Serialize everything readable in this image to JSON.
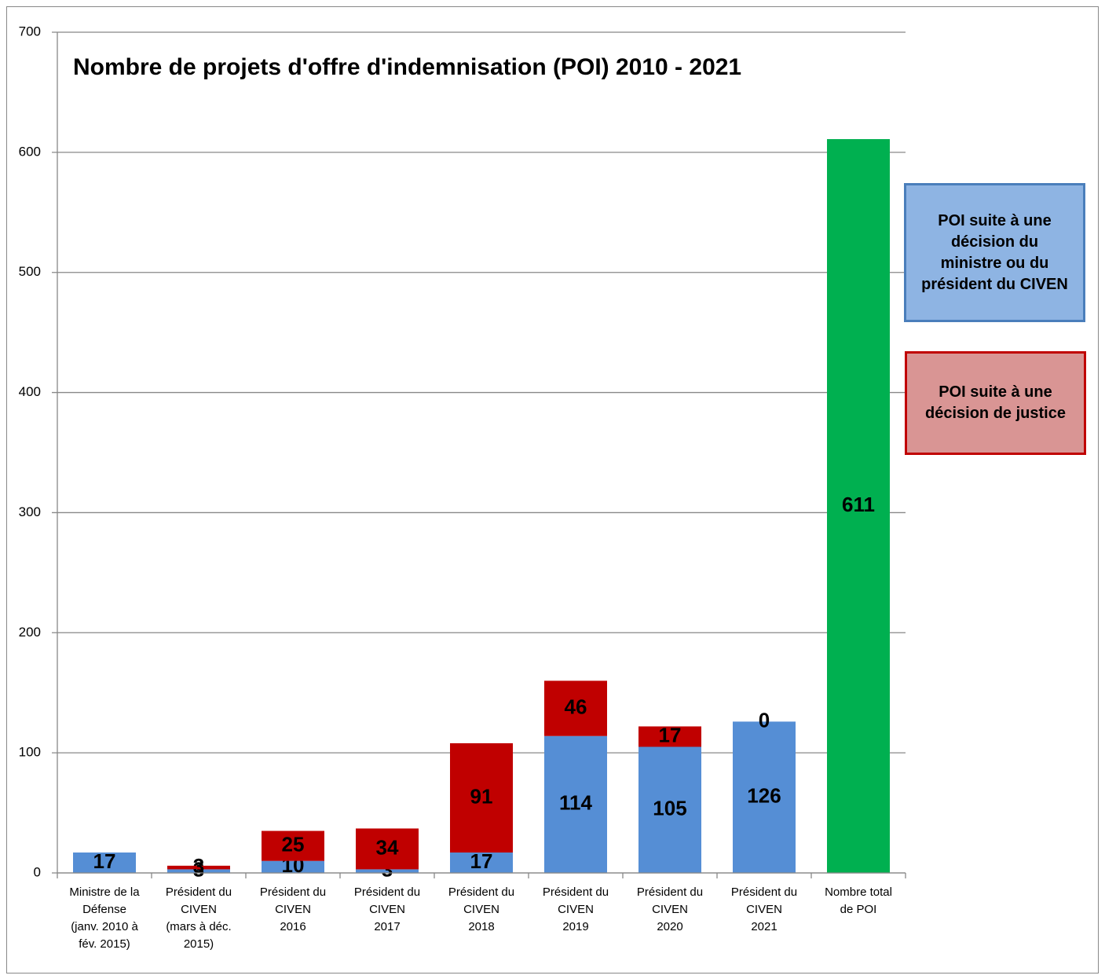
{
  "chart_data": {
    "type": "stacked_bar",
    "title": "Nombre de projets d'offre d'indemnisation (POI)   2010 - 2021",
    "categories": [
      [
        "Ministre de la",
        "Défense",
        "(janv. 2010 à",
        "fév. 2015)"
      ],
      [
        "Président du",
        "CIVEN",
        "(mars à déc.",
        "2015)"
      ],
      [
        "Président du",
        "CIVEN",
        "2016"
      ],
      [
        "Président du",
        "CIVEN",
        "2017"
      ],
      [
        "Président du",
        "CIVEN",
        "2018"
      ],
      [
        "Président du",
        "CIVEN",
        "2019"
      ],
      [
        "Président du",
        "CIVEN",
        "2020"
      ],
      [
        "Président du",
        "CIVEN",
        "2021"
      ],
      [
        "Nombre total",
        "de POI"
      ]
    ],
    "series": [
      {
        "name": "POI suite à une décision du ministre ou du président du CIVEN",
        "color": "#558ed5",
        "values": [
          17,
          3,
          10,
          3,
          17,
          114,
          105,
          126,
          null
        ]
      },
      {
        "name": "POI suite à une décision de justice",
        "color": "#c00000",
        "values": [
          null,
          3,
          25,
          34,
          91,
          46,
          17,
          0,
          null
        ]
      },
      {
        "color": "#00b050",
        "values": [
          null,
          null,
          null,
          null,
          null,
          null,
          null,
          null,
          611
        ]
      }
    ],
    "ylim": [
      0,
      700
    ],
    "yticks": [
      0,
      100,
      200,
      300,
      400,
      500,
      600,
      700
    ],
    "grid": true
  }
}
